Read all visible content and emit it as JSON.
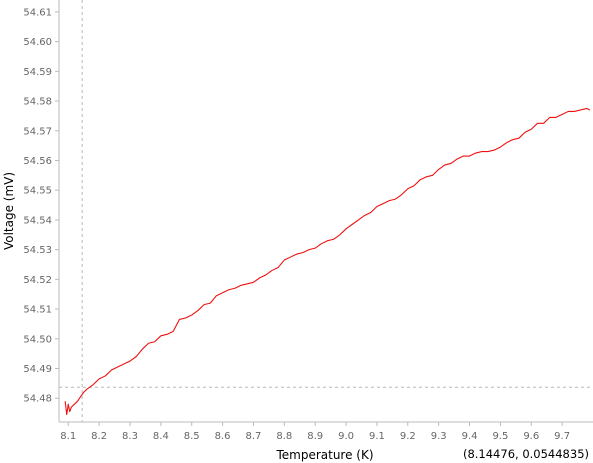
{
  "chart_data": {
    "type": "line",
    "xlabel": "Temperature (K)",
    "ylabel": "Voltage (mV)",
    "xlim": [
      8.07,
      9.8
    ],
    "ylim": [
      54.472,
      54.614
    ],
    "x_ticks": [
      "8.1",
      "8.2",
      "8.3",
      "8.4",
      "8.5",
      "8.6",
      "8.7",
      "8.8",
      "8.9",
      "9.0",
      "9.1",
      "9.2",
      "9.3",
      "9.4",
      "9.5",
      "9.6",
      "9.7"
    ],
    "y_ticks": [
      "54.48",
      "54.49",
      "54.50",
      "54.51",
      "54.52",
      "54.53",
      "54.54",
      "54.55",
      "54.56",
      "54.57",
      "54.58",
      "54.59",
      "54.60",
      "54.61"
    ],
    "grid": false,
    "series_color": "#ee1111",
    "crosshair": {
      "x": 8.145,
      "y": 54.4837
    },
    "cursor_readout": "(8.14476, 0.0544835)",
    "series": [
      {
        "x": [
          8.09,
          8.095,
          8.1,
          8.105,
          8.11,
          8.12,
          8.13,
          8.14,
          8.15,
          8.16,
          8.18,
          8.2,
          8.22,
          8.24,
          8.26,
          8.28,
          8.3,
          8.32,
          8.34,
          8.36,
          8.38,
          8.4,
          8.42,
          8.44,
          8.46,
          8.48,
          8.5,
          8.52,
          8.54,
          8.56,
          8.58,
          8.6,
          8.62,
          8.64,
          8.66,
          8.68,
          8.7,
          8.72,
          8.74,
          8.76,
          8.78,
          8.8,
          8.82,
          8.84,
          8.86,
          8.88,
          8.9,
          8.92,
          8.94,
          8.96,
          8.98,
          9.0,
          9.02,
          9.04,
          9.06,
          9.08,
          9.1,
          9.12,
          9.14,
          9.16,
          9.18,
          9.2,
          9.22,
          9.24,
          9.26,
          9.28,
          9.3,
          9.32,
          9.34,
          9.36,
          9.38,
          9.4,
          9.42,
          9.44,
          9.46,
          9.48,
          9.5,
          9.52,
          9.54,
          9.56,
          9.58,
          9.6,
          9.62,
          9.64,
          9.66,
          9.68,
          9.7,
          9.72,
          9.74,
          9.76,
          9.78,
          9.79
        ],
        "y": [
          54.479,
          54.4745,
          54.478,
          54.4755,
          54.477,
          54.478,
          54.479,
          54.4805,
          54.482,
          54.483,
          54.4845,
          54.4865,
          54.4875,
          54.4895,
          54.4905,
          54.4915,
          54.4925,
          54.494,
          54.4965,
          54.4985,
          54.499,
          54.501,
          54.5015,
          54.5025,
          54.5065,
          54.507,
          54.508,
          54.5095,
          54.5115,
          54.512,
          54.5145,
          54.5155,
          54.5165,
          54.517,
          54.518,
          54.5185,
          54.519,
          54.5205,
          54.5215,
          54.523,
          54.524,
          54.5265,
          54.5275,
          54.5285,
          54.529,
          54.53,
          54.5305,
          54.532,
          54.533,
          54.5335,
          54.535,
          54.537,
          54.5385,
          54.54,
          54.5415,
          54.5425,
          54.5445,
          54.5455,
          54.5465,
          54.547,
          54.5485,
          54.5505,
          54.5515,
          54.5535,
          54.5545,
          54.555,
          54.557,
          54.5585,
          54.559,
          54.5605,
          54.5615,
          54.5615,
          54.5625,
          54.563,
          54.563,
          54.5635,
          54.5645,
          54.566,
          54.567,
          54.5675,
          54.5695,
          54.5705,
          54.5725,
          54.5725,
          54.5745,
          54.5745,
          54.5755,
          54.5765,
          54.5765,
          54.577,
          54.5775,
          54.577
        ]
      }
    ]
  }
}
